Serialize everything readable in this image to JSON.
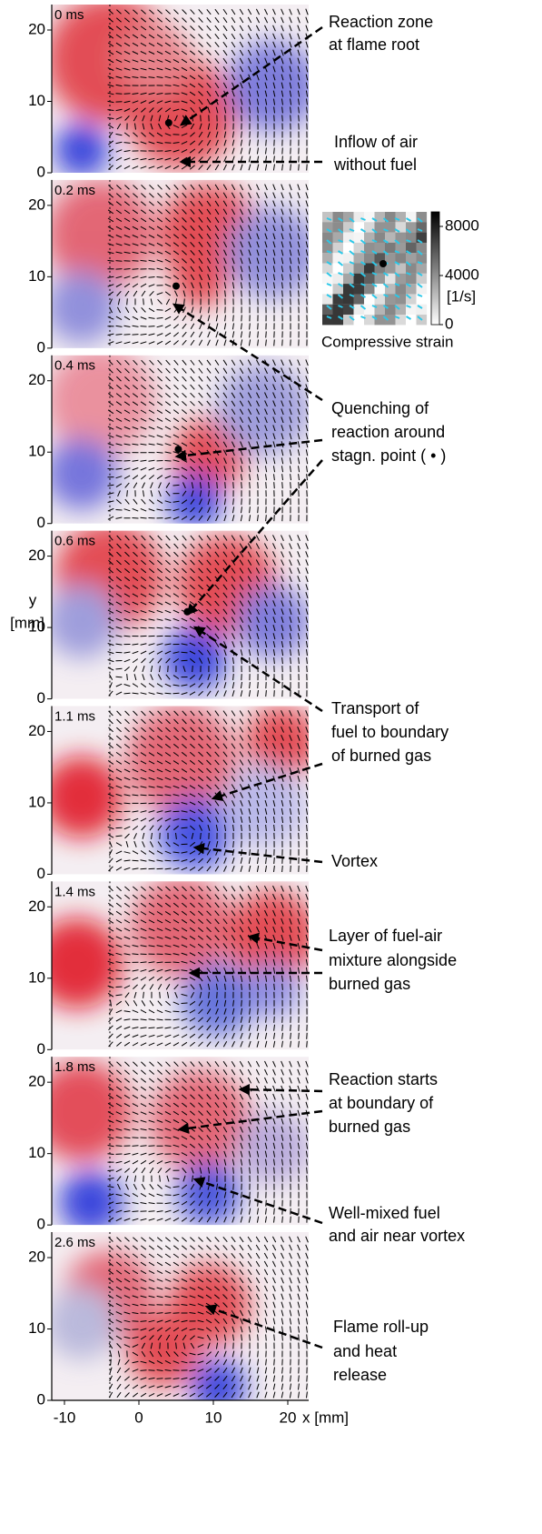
{
  "panels": [
    {
      "time": "0 ms"
    },
    {
      "time": "0.2 ms"
    },
    {
      "time": "0.4 ms"
    },
    {
      "time": "0.6 ms"
    },
    {
      "time": "1.1 ms"
    },
    {
      "time": "1.4 ms"
    },
    {
      "time": "1.8 ms"
    },
    {
      "time": "2.6 ms"
    }
  ],
  "axes": {
    "y_ticks": [
      0,
      10,
      20
    ],
    "x_ticks": [
      -10,
      0,
      10,
      20
    ],
    "x_label": "x [mm]",
    "y_label_lines": [
      "y",
      "[mm]"
    ]
  },
  "annotations": [
    {
      "lines": [
        "Reaction zone",
        "at flame root"
      ]
    },
    {
      "lines": [
        "Inflow of air",
        "without fuel"
      ]
    },
    {
      "lines": [
        "Quenching of",
        "reaction around",
        "stagn. point ( • )"
      ]
    },
    {
      "lines": [
        "Transport of",
        "fuel to boundary",
        "of burned gas"
      ]
    },
    {
      "lines": [
        "Vortex"
      ]
    },
    {
      "lines": [
        "Layer of fuel-air",
        "mixture alongside",
        "burned gas"
      ]
    },
    {
      "lines": [
        "Reaction starts",
        "at boundary of",
        "burned gas"
      ]
    },
    {
      "lines": [
        "Well-mixed fuel",
        "and air near vortex"
      ]
    },
    {
      "lines": [
        "Flame roll-up",
        "and heat",
        "release"
      ]
    }
  ],
  "inset": {
    "colorbar_ticks": [
      8000,
      4000,
      0
    ],
    "unit": "[1/s]",
    "caption": "Compressive strain"
  }
}
